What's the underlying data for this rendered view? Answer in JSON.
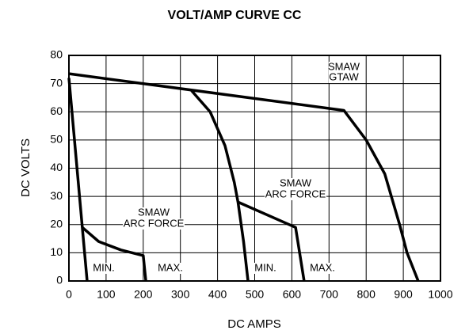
{
  "chart_data": {
    "type": "line",
    "title": "VOLT/AMP CURVE CC",
    "xlabel": "DC AMPS",
    "ylabel": "DC VOLTS",
    "xlim": [
      0,
      1000
    ],
    "xticks": [
      0,
      100,
      200,
      300,
      400,
      500,
      600,
      700,
      800,
      900,
      1000
    ],
    "ylim": [
      0,
      80
    ],
    "yticks": [
      0,
      10,
      20,
      30,
      40,
      50,
      60,
      70,
      80
    ],
    "grid": true,
    "series": [
      {
        "color": "#000000",
        "x": [
          0,
          740,
          800,
          850,
          890,
          910,
          940
        ],
        "values": [
          73.5,
          60.5,
          50,
          38,
          20,
          10,
          0
        ]
      },
      {
        "color": "#000000",
        "x": [
          330,
          380,
          420,
          445,
          455,
          470,
          482
        ],
        "values": [
          67.5,
          60,
          48,
          35,
          28,
          14,
          0
        ]
      },
      {
        "color": "#000000",
        "x": [
          455,
          610,
          633
        ],
        "values": [
          28,
          19,
          0
        ]
      },
      {
        "color": "#000000",
        "x": [
          0,
          36,
          49
        ],
        "values": [
          72,
          19,
          0
        ]
      },
      {
        "color": "#000000",
        "x": [
          36,
          80,
          140,
          200,
          207
        ],
        "values": [
          19,
          14,
          11,
          9,
          0
        ]
      }
    ],
    "annotations": [
      "SMAW",
      "GTAW",
      "SMAW",
      "ARC FORCE",
      "SMAW",
      "ARC FORCE",
      "MIN.",
      "MAX.",
      "MIN.",
      "MAX."
    ]
  }
}
